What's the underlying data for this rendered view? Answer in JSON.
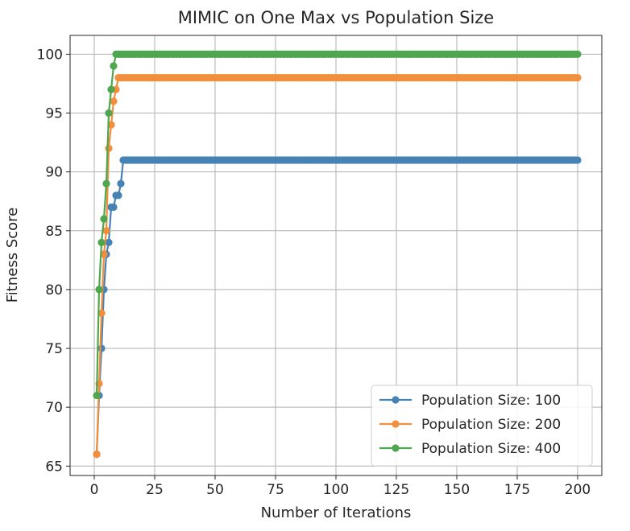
{
  "chart_data": {
    "type": "line",
    "title": "MIMIC on One Max vs Population Size",
    "xlabel": "Number of Iterations",
    "ylabel": "Fitness Score",
    "xlim": [
      -10,
      210
    ],
    "ylim": [
      64.2,
      101.6
    ],
    "xticks": [
      0,
      25,
      50,
      75,
      100,
      125,
      150,
      175,
      200
    ],
    "yticks": [
      65,
      70,
      75,
      80,
      85,
      90,
      95,
      100
    ],
    "grid": true,
    "legend_position": "lower-right",
    "x_end": 200,
    "series": [
      {
        "name": "Population Size: 100",
        "color": "#4682b4",
        "points": [
          [
            1,
            66
          ],
          [
            2,
            71
          ],
          [
            3,
            75
          ],
          [
            4,
            80
          ],
          [
            5,
            83
          ],
          [
            6,
            84
          ],
          [
            7,
            87
          ],
          [
            8,
            87
          ],
          [
            9,
            88
          ],
          [
            10,
            88
          ],
          [
            11,
            89
          ],
          [
            12,
            91
          ]
        ],
        "plateau": 91
      },
      {
        "name": "Population Size: 200",
        "color": "#f28e3c",
        "points": [
          [
            1,
            66
          ],
          [
            2,
            72
          ],
          [
            3,
            78
          ],
          [
            4,
            83
          ],
          [
            5,
            85
          ],
          [
            6,
            92
          ],
          [
            7,
            94
          ],
          [
            8,
            96
          ],
          [
            9,
            97
          ],
          [
            10,
            98
          ]
        ],
        "plateau": 98
      },
      {
        "name": "Population Size: 400",
        "color": "#4ea64e",
        "points": [
          [
            1,
            71
          ],
          [
            2,
            80
          ],
          [
            3,
            84
          ],
          [
            4,
            86
          ],
          [
            5,
            89
          ],
          [
            6,
            95
          ],
          [
            7,
            97
          ],
          [
            8,
            99
          ],
          [
            9,
            100
          ]
        ],
        "plateau": 100
      }
    ]
  }
}
